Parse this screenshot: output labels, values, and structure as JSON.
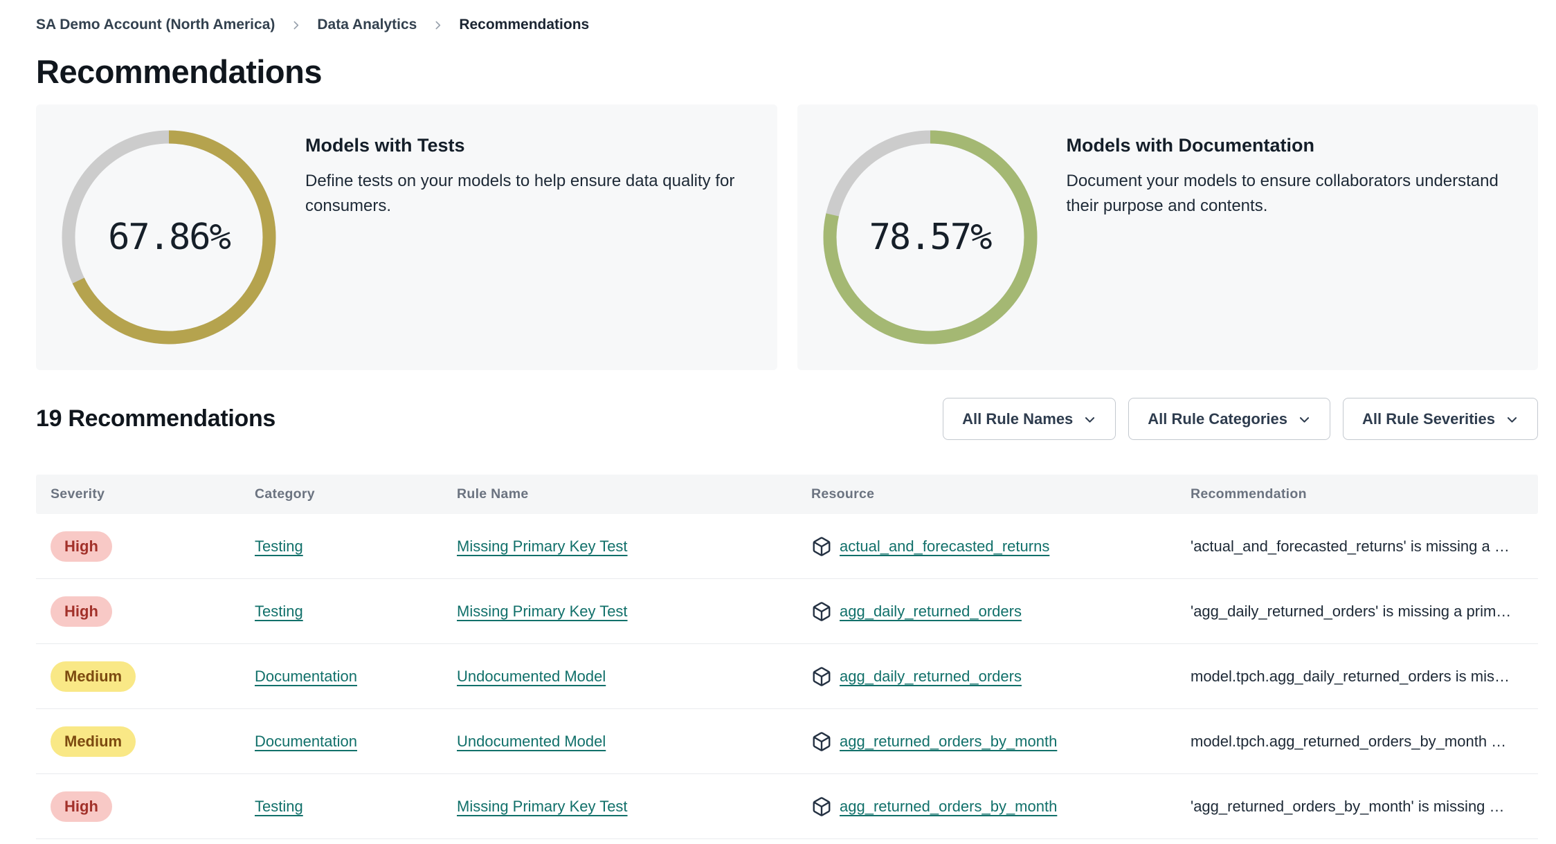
{
  "breadcrumb": {
    "items": [
      "SA Demo Account (North America)",
      "Data Analytics",
      "Recommendations"
    ]
  },
  "page": {
    "title": "Recommendations"
  },
  "chart_data": [
    {
      "type": "donut",
      "title": "Models with Tests",
      "description": "Define tests on your models to help ensure data quality for consumers.",
      "value": 67.86,
      "label": "67.86%",
      "arc_color": "#b5a34e",
      "track_color": "#cccccc",
      "start_angle": "top",
      "direction": "clockwise"
    },
    {
      "type": "donut",
      "title": "Models with Documentation",
      "description": "Document your models to ensure collaborators understand their purpose and contents.",
      "value": 78.57,
      "label": "78.57%",
      "arc_color": "#a4b873",
      "track_color": "#cccccc",
      "start_angle": "top",
      "direction": "clockwise"
    }
  ],
  "list_header": {
    "count_label": "19 Recommendations"
  },
  "filters": [
    {
      "label": "All Rule Names"
    },
    {
      "label": "All Rule Categories"
    },
    {
      "label": "All Rule Severities"
    }
  ],
  "table": {
    "columns": [
      "Severity",
      "Category",
      "Rule Name",
      "Resource",
      "Recommendation"
    ],
    "rows": [
      {
        "severity": "High",
        "severity_level": "high",
        "category": "Testing",
        "rule_name": "Missing Primary Key Test",
        "resource": "actual_and_forecasted_returns",
        "recommendation": "'actual_and_forecasted_returns' is missing a …"
      },
      {
        "severity": "High",
        "severity_level": "high",
        "category": "Testing",
        "rule_name": "Missing Primary Key Test",
        "resource": "agg_daily_returned_orders",
        "recommendation": "'agg_daily_returned_orders' is missing a prim…"
      },
      {
        "severity": "Medium",
        "severity_level": "medium",
        "category": "Documentation",
        "rule_name": "Undocumented Model",
        "resource": "agg_daily_returned_orders",
        "recommendation": "model.tpch.agg_daily_returned_orders is mis…"
      },
      {
        "severity": "Medium",
        "severity_level": "medium",
        "category": "Documentation",
        "rule_name": "Undocumented Model",
        "resource": "agg_returned_orders_by_month",
        "recommendation": "model.tpch.agg_returned_orders_by_month …"
      },
      {
        "severity": "High",
        "severity_level": "high",
        "category": "Testing",
        "rule_name": "Missing Primary Key Test",
        "resource": "agg_returned_orders_by_month",
        "recommendation": "'agg_returned_orders_by_month' is missing …"
      }
    ]
  },
  "colors": {
    "link_teal": "#11706a",
    "badge_high_bg": "#f8c9c6",
    "badge_high_text": "#a2312a",
    "badge_medium_bg": "#f9e886",
    "badge_medium_text": "#7c4a10",
    "card_bg": "#f7f8f9",
    "table_header_bg": "#f5f6f7",
    "donut_gold": "#b5a34e",
    "donut_green": "#a4b873",
    "donut_track": "#cccccc"
  }
}
